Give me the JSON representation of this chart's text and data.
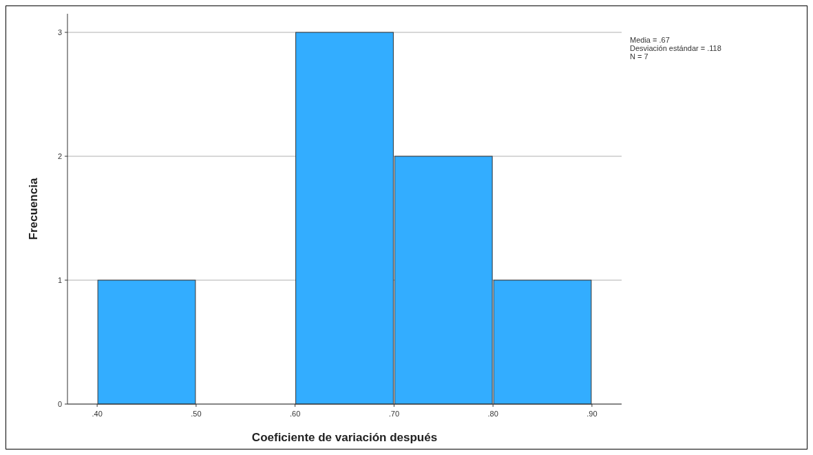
{
  "chart_data": {
    "type": "histogram",
    "xlabel": "Coeficiente de variación después",
    "ylabel": "Frecuencia",
    "bins": [
      0.4,
      0.5,
      0.6,
      0.7,
      0.8,
      0.9
    ],
    "values": [
      1,
      0,
      3,
      2,
      1
    ],
    "color": "#33adff",
    "xlim": [
      0.37,
      0.93
    ],
    "xticks": [
      {
        "value": 0.4,
        "label": ".40"
      },
      {
        "value": 0.5,
        "label": ".50"
      },
      {
        "value": 0.6,
        "label": ".60"
      },
      {
        "value": 0.7,
        "label": ".70"
      },
      {
        "value": 0.8,
        "label": ".80"
      },
      {
        "value": 0.9,
        "label": ".90"
      }
    ],
    "ylim": [
      0,
      3.15
    ],
    "yticks": [
      0,
      1,
      2,
      3
    ],
    "grid": "y",
    "annotations": [
      "Media = .67",
      "Desviación estándar = .118",
      "N = 7"
    ]
  }
}
